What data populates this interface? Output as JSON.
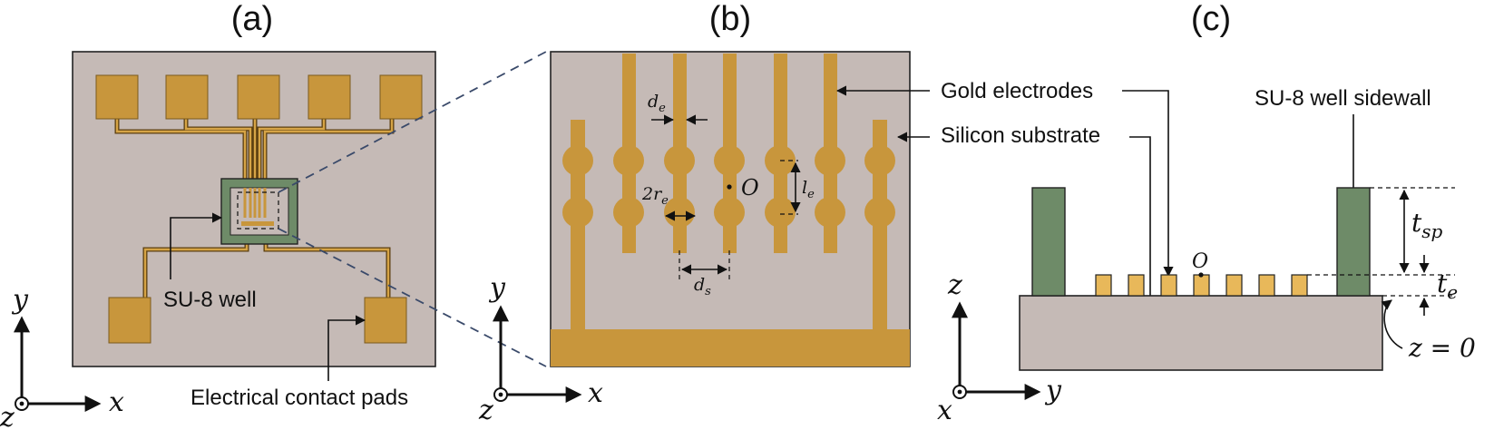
{
  "panels": {
    "a": {
      "label": "(a)",
      "callouts": {
        "well": "SU-8 well",
        "pads": "Electrical contact pads"
      },
      "axes": {
        "vertical": "y",
        "horizontal": "x",
        "out_of_plane": "z"
      }
    },
    "b": {
      "label": "(b)",
      "dimensions": {
        "de": "d",
        "de_sub": "e",
        "re": "2r",
        "re_sub": "e",
        "le": "l",
        "le_sub": "e",
        "ds": "d",
        "ds_sub": "s",
        "origin": "O"
      },
      "axes": {
        "vertical": "y",
        "horizontal": "x",
        "out_of_plane": "z"
      }
    },
    "c": {
      "label": "(c)",
      "callouts": {
        "gold_electrodes": "Gold electrodes",
        "silicon_substrate": "Silicon substrate",
        "sidewall": "SU-8 well sidewall"
      },
      "dimensions": {
        "origin": "O",
        "tsp": "t",
        "tsp_sub": "sp",
        "te": "t",
        "te_sub": "e",
        "z0": "z = 0"
      },
      "axes": {
        "vertical": "z",
        "horizontal": "y",
        "out_of_plane": "x"
      }
    }
  },
  "colors": {
    "substrate": "#C5BAB6",
    "gold": "#C8963C",
    "gold_light": "#E8B85A",
    "su8_green": "#6E8B68",
    "zoom_lines": "#3a4a6a"
  }
}
